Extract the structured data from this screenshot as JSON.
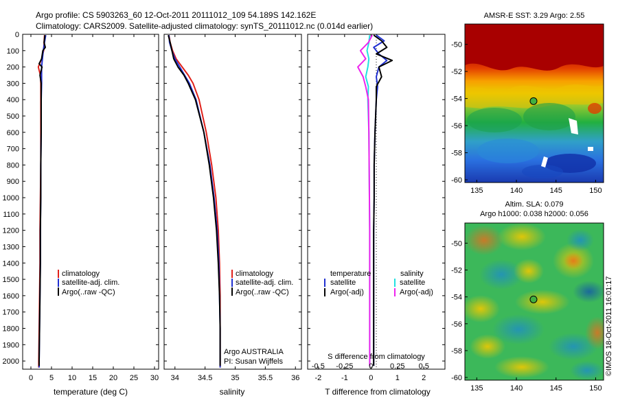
{
  "header": {
    "line1": "Argo profile: CS 5903263_60 12-Oct-2011 20111012_109 54.189S 142.162E",
    "line2": "Climatology: CARS2009. Satellite-adjusted climatology: synTS_20111012.nc (0.014d earlier)"
  },
  "pressure_axis": {
    "ticks": [
      "0",
      "100",
      "200",
      "300",
      "400",
      "500",
      "600",
      "700",
      "800",
      "900",
      "1000",
      "1100",
      "1200",
      "1300",
      "1400",
      "1500",
      "1600",
      "1700",
      "1800",
      "1900",
      "2000"
    ]
  },
  "colors": {
    "climatology": "#e0201a",
    "satellite_adj": "#1f2fd0",
    "argo": "#000000",
    "salinity_satellite": "#20e0e0",
    "salinity_argo_adj": "#ee22ee"
  },
  "chart_data": [
    {
      "type": "line",
      "xlabel": "temperature (deg C)",
      "xticks": [
        "0",
        "5",
        "10",
        "15",
        "20",
        "25",
        "30"
      ],
      "xlim": [
        -2,
        31
      ],
      "ylim": [
        2050,
        0
      ],
      "y_reversed": true,
      "legend": [
        "climatology",
        "satellite-adj. clim.",
        "Argo(..raw -QC)"
      ],
      "legend_position": "lower-middle",
      "series": [
        {
          "name": "climatology",
          "color_key": "climatology",
          "y": [
            5,
            50,
            100,
            150,
            200,
            250,
            300,
            400,
            600,
            800,
            1000,
            1200,
            1400,
            1600,
            1800,
            2000,
            2040
          ],
          "x": [
            3.3,
            3.2,
            3.1,
            2.6,
            1.8,
            2.3,
            2.4,
            2.4,
            2.4,
            2.4,
            2.3,
            2.2,
            2.2,
            2.1,
            2.0,
            1.9,
            1.9
          ]
        },
        {
          "name": "satellite-adj. clim.",
          "color_key": "satellite_adj",
          "y": [
            5,
            50,
            100,
            150,
            200,
            250,
            300,
            400,
            600,
            800,
            1000,
            1200,
            1400,
            1600,
            1800,
            2000,
            2040
          ],
          "x": [
            3.6,
            3.3,
            3.0,
            2.8,
            2.6,
            2.6,
            2.6,
            2.5,
            2.5,
            2.4,
            2.4,
            2.3,
            2.3,
            2.2,
            2.1,
            2.0,
            2.0
          ]
        },
        {
          "name": "Argo(..raw -QC)",
          "color_key": "argo",
          "y": [
            5,
            50,
            80,
            100,
            150,
            180,
            200,
            250,
            300,
            400,
            600,
            800,
            1000,
            1200,
            1400,
            1600,
            1800,
            2000,
            2030
          ],
          "x": [
            3.4,
            3.2,
            3.5,
            2.9,
            2.6,
            2.0,
            2.7,
            2.2,
            2.5,
            2.5,
            2.5,
            2.4,
            2.4,
            2.3,
            2.3,
            2.2,
            2.1,
            2.0,
            2.0
          ]
        }
      ]
    },
    {
      "type": "line",
      "xlabel": "salinity",
      "xticks": [
        "34",
        "34.5",
        "35",
        "35.5",
        "36"
      ],
      "xlim": [
        33.82,
        36.1
      ],
      "ylim": [
        2050,
        0
      ],
      "y_reversed": true,
      "legend": [
        "climatology",
        "satellite-adj. clim.",
        "Argo(..raw -QC)"
      ],
      "legend_position": "lower-right",
      "annotation": [
        "Argo AUSTRALIA",
        "PI: Susan Wijffels"
      ],
      "series": [
        {
          "name": "climatology",
          "color_key": "climatology",
          "y": [
            5,
            50,
            100,
            150,
            200,
            250,
            300,
            400,
            600,
            800,
            1000,
            1200,
            1400,
            1600,
            1800,
            2000,
            2040
          ],
          "x": [
            33.9,
            33.92,
            33.96,
            34.02,
            34.12,
            34.22,
            34.3,
            34.4,
            34.52,
            34.61,
            34.68,
            34.72,
            34.74,
            34.75,
            34.75,
            34.75,
            34.75
          ]
        },
        {
          "name": "satellite-adj. clim.",
          "color_key": "satellite_adj",
          "y": [
            5,
            50,
            100,
            150,
            200,
            250,
            300,
            400,
            600,
            800,
            1000,
            1200,
            1400,
            1600,
            1800,
            2000,
            2040
          ],
          "x": [
            33.9,
            33.91,
            33.95,
            34.0,
            34.08,
            34.16,
            34.24,
            34.35,
            34.48,
            34.58,
            34.65,
            34.7,
            34.73,
            34.74,
            34.75,
            34.75,
            34.75
          ]
        },
        {
          "name": "Argo(..raw -QC)",
          "color_key": "argo",
          "y": [
            5,
            50,
            100,
            150,
            200,
            250,
            300,
            400,
            600,
            800,
            1000,
            1200,
            1400,
            1600,
            1800,
            2000,
            2030
          ],
          "x": [
            33.89,
            33.92,
            33.95,
            33.98,
            34.05,
            34.15,
            34.22,
            34.34,
            34.48,
            34.57,
            34.64,
            34.69,
            34.72,
            34.74,
            34.75,
            34.75,
            34.75
          ]
        }
      ]
    },
    {
      "type": "line",
      "xlabel": "T difference from climatology",
      "xlabel_top": "S difference from climatology",
      "xticks": [
        "-2",
        "-1",
        "0",
        "1",
        "2"
      ],
      "xticks_top": [
        "-0.5",
        "-0.25",
        "0",
        "0.25",
        "0.5"
      ],
      "xlim": [
        -2.4,
        2.8
      ],
      "ylim": [
        2050,
        0
      ],
      "y_reversed": true,
      "legend_headers": [
        "temperature",
        "salinity"
      ],
      "legend": [
        "satellite",
        "Argo(-adj)",
        "satellite",
        "Argo(-adj)"
      ],
      "legend_position": "lower-middle",
      "series": [
        {
          "name": "satellite",
          "color_key": "satellite_adj",
          "y": [
            5,
            40,
            80,
            120,
            160,
            200,
            260,
            320,
            400,
            600,
            800,
            1000,
            1200,
            1400,
            1600,
            1800,
            2000,
            2030
          ],
          "x": [
            0.2,
            0.5,
            0.1,
            0.3,
            0.6,
            0.3,
            0.2,
            0.25,
            0.2,
            0.15,
            0.12,
            0.12,
            0.1,
            0.1,
            0.1,
            0.1,
            0.1,
            0.1
          ]
        },
        {
          "name": "Argo(-adj)",
          "color_key": "argo",
          "y": [
            5,
            40,
            80,
            120,
            160,
            200,
            260,
            320,
            400,
            600,
            800,
            1000,
            1200,
            1400,
            1600,
            1800,
            2000,
            2030
          ],
          "x": [
            0.1,
            0.4,
            0.6,
            0.2,
            0.8,
            0.3,
            0.4,
            0.2,
            0.2,
            0.15,
            0.12,
            0.12,
            0.1,
            0.1,
            0.1,
            0.1,
            0.1,
            0.1
          ]
        },
        {
          "name": "satellite",
          "color_key": "salinity_satellite",
          "y": [
            5,
            50,
            100,
            150,
            200,
            260,
            320,
            400,
            600,
            800,
            1000,
            1200,
            1400,
            1600,
            1800,
            2000,
            2030
          ],
          "x": [
            -0.05,
            -0.08,
            -0.15,
            -0.08,
            -0.12,
            -0.2,
            -0.1,
            -0.12,
            -0.08,
            -0.07,
            -0.06,
            -0.05,
            -0.05,
            -0.05,
            -0.05,
            -0.05,
            -0.05
          ]
        },
        {
          "name": "Argo(-adj)",
          "color_key": "salinity_argo_adj",
          "y": [
            5,
            50,
            100,
            150,
            200,
            260,
            320,
            400,
            600,
            800,
            1000,
            1200,
            1400,
            1600,
            1800,
            2000,
            2030
          ],
          "x": [
            0.05,
            -0.1,
            -0.4,
            -0.2,
            -0.5,
            -0.3,
            -0.2,
            -0.1,
            -0.08,
            -0.07,
            -0.06,
            -0.05,
            -0.05,
            -0.05,
            -0.05,
            -0.05,
            -0.05
          ]
        }
      ]
    },
    {
      "type": "heatmap",
      "title": "AMSR-E SST: 3.29 Argo: 2.55",
      "xticks": [
        "135",
        "140",
        "145",
        "150"
      ],
      "yticks": [
        "-50",
        "-52",
        "-54",
        "-56",
        "-58",
        "-60"
      ],
      "xlim": [
        133.5,
        151
      ],
      "ylim": [
        -60.2,
        -48.5
      ],
      "marker": {
        "lon": 142.162,
        "lat": -54.189
      }
    },
    {
      "type": "heatmap",
      "title_line1": "Altim. SLA: 0.079",
      "title_line2": "Argo h1000: 0.038 h2000: 0.056",
      "xticks": [
        "135",
        "140",
        "145",
        "150"
      ],
      "yticks": [
        "-50",
        "-52",
        "-54",
        "-56",
        "-58",
        "-60"
      ],
      "xlim": [
        133.5,
        151
      ],
      "ylim": [
        -60.2,
        -48.5
      ],
      "marker": {
        "lon": 142.162,
        "lat": -54.189
      }
    }
  ],
  "footer": {
    "credit": "©IMOS 18-Oct-2011 16:01:17"
  }
}
